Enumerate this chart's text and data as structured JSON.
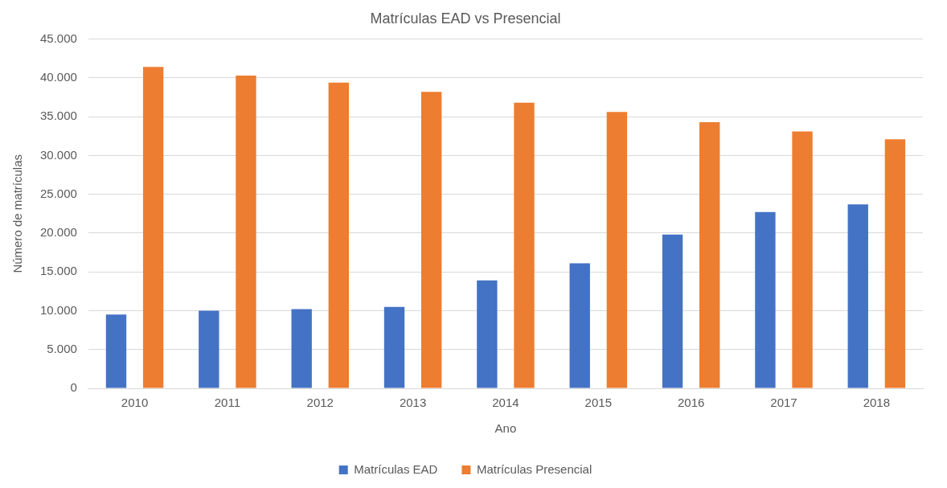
{
  "chart_data": {
    "type": "bar",
    "title": "Matrículas EAD vs Presencial",
    "xlabel": "Ano",
    "ylabel": "Número de matrículas",
    "categories": [
      "2010",
      "2011",
      "2012",
      "2013",
      "2014",
      "2015",
      "2016",
      "2017",
      "2018"
    ],
    "series": [
      {
        "name": "Matrículas EAD",
        "color": "#4472c4",
        "values": [
          9500,
          10000,
          10200,
          10500,
          13900,
          16100,
          19800,
          22700,
          23700
        ]
      },
      {
        "name": "Matrículas Presencial",
        "color": "#ed7d31",
        "values": [
          41400,
          40300,
          39400,
          38200,
          36800,
          35600,
          34300,
          33100,
          32100
        ]
      }
    ],
    "ylim": [
      0,
      45000
    ],
    "yticks": [
      {
        "value": 0,
        "label": "0"
      },
      {
        "value": 5000,
        "label": "5.000"
      },
      {
        "value": 10000,
        "label": "10.000"
      },
      {
        "value": 15000,
        "label": "15.000"
      },
      {
        "value": 20000,
        "label": "20.000"
      },
      {
        "value": 25000,
        "label": "25.000"
      },
      {
        "value": 30000,
        "label": "30.000"
      },
      {
        "value": 35000,
        "label": "35.000"
      },
      {
        "value": 40000,
        "label": "40.000"
      },
      {
        "value": 45000,
        "label": "45.000"
      }
    ],
    "grid": "y",
    "legend": "bottom"
  }
}
